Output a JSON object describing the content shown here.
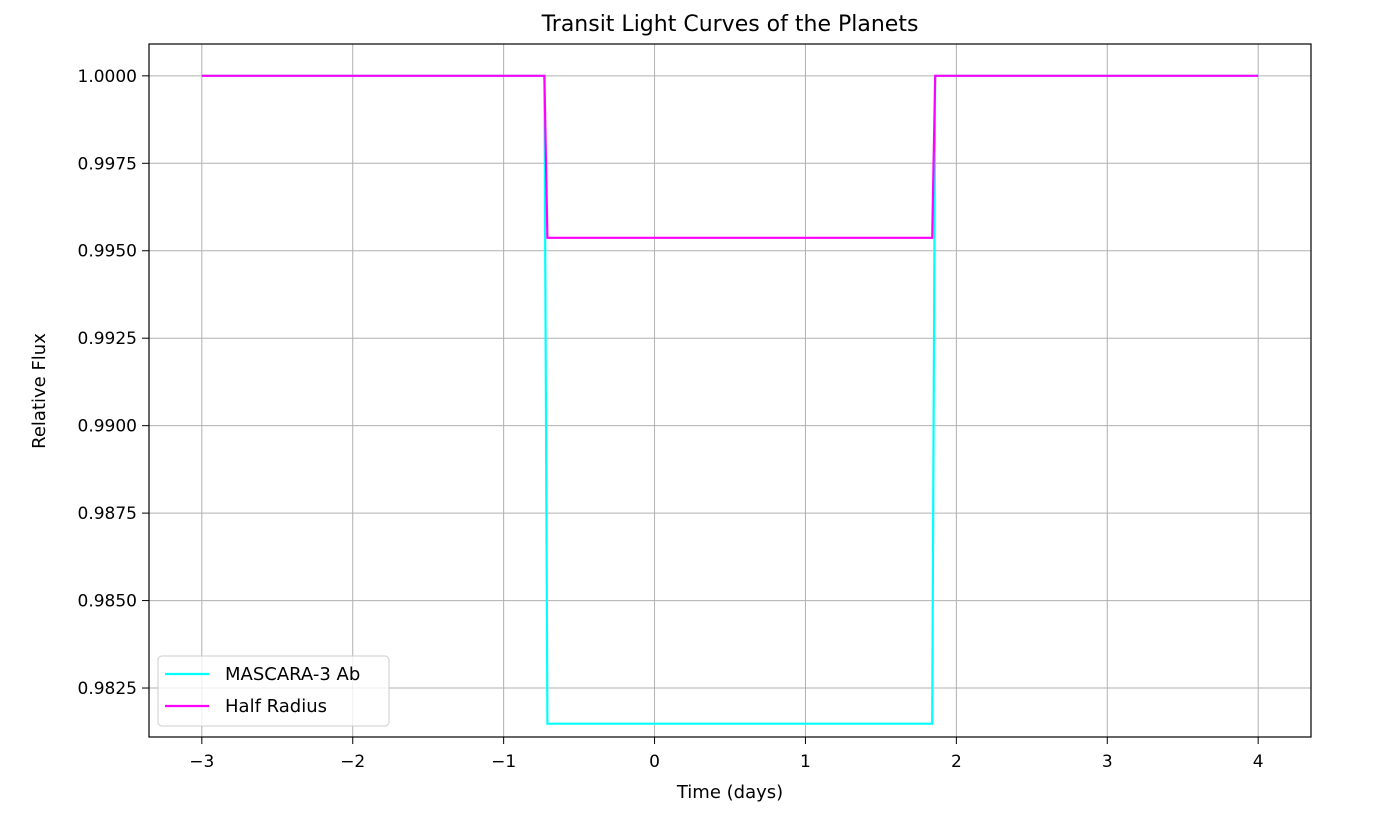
{
  "chart_data": {
    "type": "line",
    "title": "Transit Light Curves of the Planets",
    "xlabel": "Time (days)",
    "ylabel": "Relative Flux",
    "xlim": [
      -3.35,
      4.35
    ],
    "ylim": [
      0.9811,
      1.00091
    ],
    "xticks": [
      -3,
      -2,
      -1,
      0,
      1,
      2,
      3,
      4
    ],
    "xtick_labels": [
      "−3",
      "−2",
      "−1",
      "0",
      "1",
      "2",
      "3",
      "4"
    ],
    "yticks": [
      0.9825,
      0.985,
      0.9875,
      0.99,
      0.9925,
      0.995,
      0.9975,
      1.0
    ],
    "ytick_labels": [
      "0.9825",
      "0.9850",
      "0.9875",
      "0.9900",
      "0.9925",
      "0.9950",
      "0.9975",
      "1.0000"
    ],
    "grid": true,
    "legend_position": "lower-left",
    "series": [
      {
        "name": "MASCARA-3 Ab",
        "color": "#00ffff",
        "x": [
          -3.0,
          -0.73,
          -0.71,
          1.84,
          1.86,
          4.0
        ],
        "y": [
          1.0,
          1.0,
          0.98148,
          0.98148,
          1.0,
          1.0
        ]
      },
      {
        "name": "Half Radius",
        "color": "#ff00ff",
        "x": [
          -3.0,
          -0.73,
          -0.71,
          1.84,
          1.86,
          4.0
        ],
        "y": [
          1.0,
          1.0,
          0.99537,
          0.99537,
          1.0,
          1.0
        ]
      }
    ]
  }
}
